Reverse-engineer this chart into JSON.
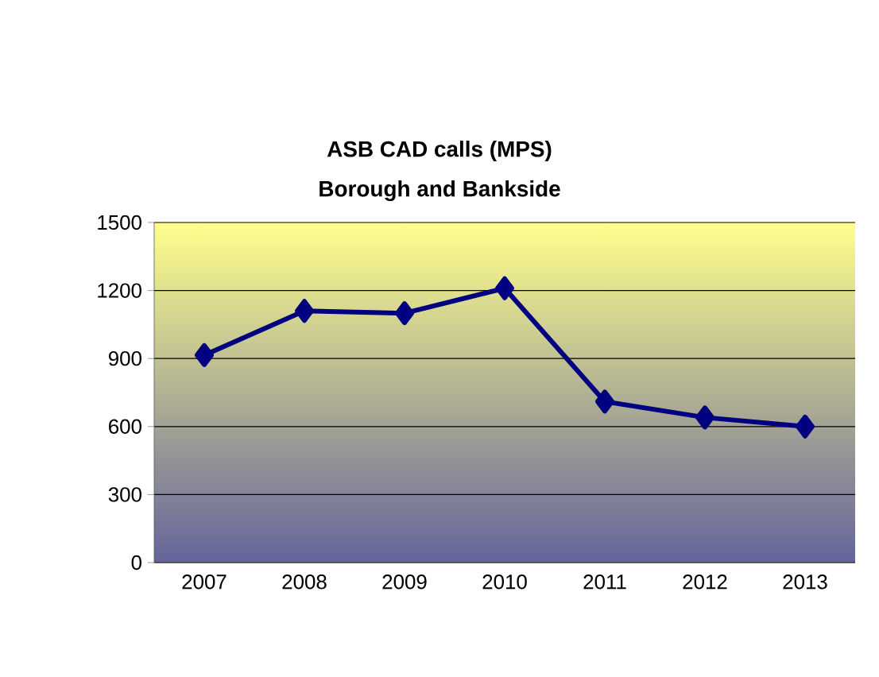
{
  "chart_data": {
    "type": "line",
    "title": "ASB CAD calls (MPS)",
    "subtitle": "Borough and Bankside",
    "categories": [
      "2007",
      "2008",
      "2009",
      "2010",
      "2011",
      "2012",
      "2013"
    ],
    "values": [
      915,
      1110,
      1100,
      1210,
      710,
      640,
      600
    ],
    "color": "#000080",
    "marker": "diamond",
    "line_style": "solid",
    "ylim": [
      0,
      1500
    ],
    "yticks": [
      0,
      300,
      600,
      900,
      1200,
      1500
    ],
    "grid": "y"
  }
}
